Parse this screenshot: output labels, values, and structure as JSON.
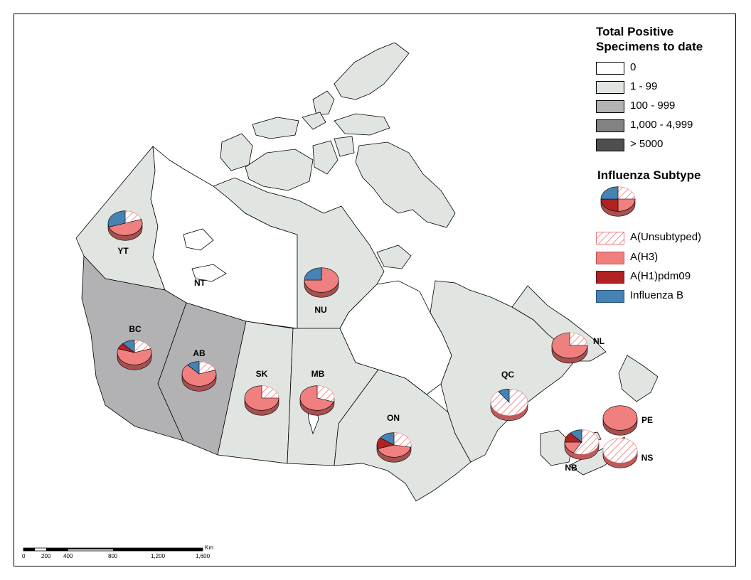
{
  "legend": {
    "total_title_line1": "Total Positive",
    "total_title_line2": "Specimens to date",
    "ranges": [
      {
        "label": "0",
        "color": "#ffffff"
      },
      {
        "label": "1 - 99",
        "color": "#e1e5e1"
      },
      {
        "label": "100 - 999",
        "color": "#b2b2b4"
      },
      {
        "label": "1,000 - 4,999",
        "color": "#828282"
      },
      {
        "label": "> 5000",
        "color": "#4e4e4e"
      }
    ],
    "subtype_title": "Influenza Subtype",
    "subtypes": [
      {
        "label": "A(Unsubtyped)",
        "color": "hatch"
      },
      {
        "label": "A(H3)",
        "color": "#f08080"
      },
      {
        "label": "A(H1)pdm09",
        "color": "#b22222"
      },
      {
        "label": "Influenza B",
        "color": "#4682b4"
      }
    ]
  },
  "provinces": [
    {
      "code": "YT",
      "range": "1 - 99"
    },
    {
      "code": "NT",
      "range": "0"
    },
    {
      "code": "NU",
      "range": "1 - 99"
    },
    {
      "code": "BC",
      "range": "100 - 999"
    },
    {
      "code": "AB",
      "range": "100 - 999"
    },
    {
      "code": "SK",
      "range": "1 - 99"
    },
    {
      "code": "MB",
      "range": "1 - 99"
    },
    {
      "code": "ON",
      "range": "1 - 99"
    },
    {
      "code": "QC",
      "range": "1 - 99"
    },
    {
      "code": "NL",
      "range": "1 - 99"
    },
    {
      "code": "NB",
      "range": "1 - 99"
    },
    {
      "code": "NS",
      "range": "1 - 99"
    },
    {
      "code": "PE",
      "range": "1 - 99"
    }
  ],
  "pies": {
    "YT": {
      "unsub": 0.2,
      "h3": 0.5,
      "h1": 0,
      "b": 0.3
    },
    "NU": {
      "unsub": 0,
      "h3": 0.75,
      "h1": 0,
      "b": 0.25
    },
    "BC": {
      "unsub": 0.2,
      "h3": 0.6,
      "h1": 0.08,
      "b": 0.12
    },
    "AB": {
      "unsub": 0.2,
      "h3": 0.68,
      "h1": 0,
      "b": 0.12
    },
    "SK": {
      "unsub": 0.25,
      "h3": 0.75,
      "h1": 0,
      "b": 0
    },
    "MB": {
      "unsub": 0.3,
      "h3": 0.7,
      "h1": 0,
      "b": 0
    },
    "ON": {
      "unsub": 0.28,
      "h3": 0.42,
      "h1": 0.15,
      "b": 0.15
    },
    "QC": {
      "unsub": 0.9,
      "h3": 0,
      "h1": 0,
      "b": 0.1
    },
    "NL": {
      "unsub": 0.25,
      "h3": 0.75,
      "h1": 0,
      "b": 0
    },
    "NB": {
      "unsub": 0.58,
      "h3": 0.17,
      "h1": 0.13,
      "b": 0.12
    },
    "NS": {
      "unsub": 1,
      "h3": 0,
      "h1": 0,
      "b": 0
    },
    "PE": {
      "unsub": 0,
      "h3": 1,
      "h1": 0,
      "b": 0
    }
  },
  "scale_bar": {
    "unit": "Km",
    "ticks": [
      "0",
      "200",
      "400",
      "800",
      "1,200",
      "1,600"
    ]
  }
}
